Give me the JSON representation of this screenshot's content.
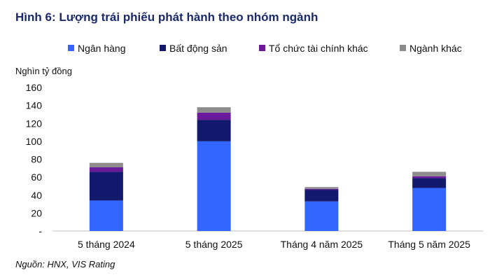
{
  "chart_data": {
    "type": "bar",
    "stacked": true,
    "title": "Hình 6: Lượng trái phiếu phát hành theo nhóm ngành",
    "ylabel": "Nghìn tỷ đồng",
    "xlabel": "",
    "ylim": [
      0,
      160
    ],
    "yticks": [
      0,
      20,
      40,
      60,
      80,
      100,
      120,
      140,
      160
    ],
    "ytick_labels": [
      "-",
      "20",
      "40",
      "60",
      "80",
      "100",
      "120",
      "140",
      "160"
    ],
    "grid": false,
    "legend_position": "top",
    "categories": [
      "5 tháng 2024",
      "5 tháng 2025",
      "Tháng 4 năm 2025",
      "Tháng 5 năm 2025"
    ],
    "series": [
      {
        "name": "Ngân hàng",
        "color": "#3366ff",
        "values": [
          34,
          100,
          33,
          48
        ]
      },
      {
        "name": "Bất động sản",
        "color": "#131a6e",
        "values": [
          32,
          24,
          13,
          11
        ]
      },
      {
        "name": "Tổ chức tài chính khác",
        "color": "#6a1a9a",
        "values": [
          5,
          8,
          1,
          2
        ]
      },
      {
        "name": "Ngành khác",
        "color": "#8c8c8c",
        "values": [
          5,
          6,
          2,
          5
        ]
      }
    ],
    "source": "Nguồn: HNX, VIS Rating"
  }
}
